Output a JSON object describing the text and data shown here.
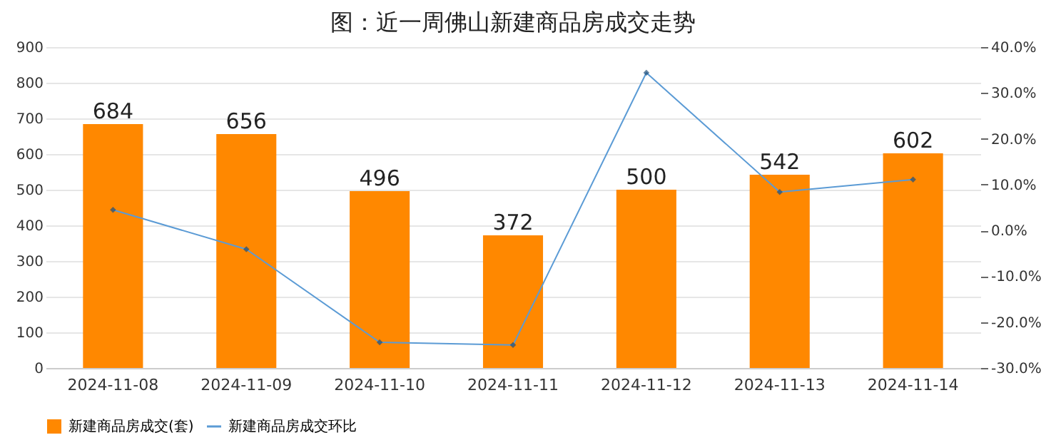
{
  "chart_data": {
    "type": "bar",
    "title": "图：近一周佛山新建商品房成交走势",
    "categories": [
      "2024-11-08",
      "2024-11-09",
      "2024-11-10",
      "2024-11-11",
      "2024-11-12",
      "2024-11-13",
      "2024-11-14"
    ],
    "series": [
      {
        "name": "新建商品房成交(套)",
        "color": "#ff8800",
        "values": [
          684,
          656,
          496,
          372,
          500,
          542,
          602
        ],
        "value_labels": [
          "684",
          "656",
          "496",
          "372",
          "500",
          "542",
          "602"
        ]
      },
      {
        "name": "新建商品房成交环比",
        "type": "line",
        "axis": "y2",
        "color": "#5b9bd5",
        "marker": "diamond",
        "values": [
          4.5,
          -4.1,
          -24.4,
          -25.0,
          34.4,
          8.4,
          11.1
        ]
      }
    ],
    "ylim": [
      0,
      900
    ],
    "yticks": [
      0,
      100,
      200,
      300,
      400,
      500,
      600,
      700,
      800,
      900
    ],
    "y2lim": [
      -30,
      40
    ],
    "y2ticks": [
      {
        "value": -30,
        "label": "-30.0%"
      },
      {
        "value": -20,
        "label": "-20.0%"
      },
      {
        "value": -10,
        "label": "-10.0%"
      },
      {
        "value": 0,
        "label": "0.0%"
      },
      {
        "value": 10,
        "label": "10.0%"
      },
      {
        "value": 20,
        "label": "20.0%"
      },
      {
        "value": 30,
        "label": "30.0%"
      },
      {
        "value": 40,
        "label": "40.0%"
      }
    ],
    "grid": "y",
    "legend": "bottom"
  }
}
